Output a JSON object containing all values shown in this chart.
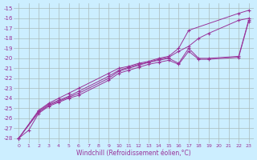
{
  "xlabel": "Windchill (Refroidissement éolien,°C)",
  "background_color": "#cceeff",
  "grid_color": "#aabbbb",
  "line_color": "#993399",
  "xlim": [
    -0.5,
    23.5
  ],
  "ylim": [
    -28.5,
    -14.5
  ],
  "yticks": [
    -28,
    -27,
    -26,
    -25,
    -24,
    -23,
    -22,
    -21,
    -20,
    -19,
    -18,
    -17,
    -16,
    -15
  ],
  "xticks": [
    0,
    1,
    2,
    3,
    4,
    5,
    6,
    7,
    8,
    9,
    10,
    11,
    12,
    13,
    14,
    15,
    16,
    17,
    18,
    19,
    20,
    21,
    22,
    23
  ],
  "lines": [
    {
      "x": [
        0,
        2,
        3,
        4,
        5,
        6,
        9,
        10,
        11,
        12,
        13,
        14,
        15,
        16,
        17,
        22,
        23
      ],
      "y": [
        -28,
        -25.2,
        -24.5,
        -24.0,
        -23.5,
        -23.0,
        -21.5,
        -21.0,
        -20.8,
        -20.5,
        -20.3,
        -20.0,
        -19.8,
        -19.0,
        -17.2,
        -15.5,
        -15.2
      ]
    },
    {
      "x": [
        0,
        2,
        3,
        4,
        5,
        6,
        9,
        10,
        11,
        12,
        13,
        14,
        15,
        16,
        17,
        18,
        19,
        22,
        23
      ],
      "y": [
        -28,
        -25.3,
        -24.6,
        -24.2,
        -23.8,
        -23.3,
        -21.8,
        -21.2,
        -20.9,
        -20.6,
        -20.4,
        -20.1,
        -19.9,
        -19.3,
        -18.8,
        -18.0,
        -17.5,
        -16.2,
        -16.0
      ]
    },
    {
      "x": [
        0,
        2,
        3,
        4,
        5,
        6,
        9,
        10,
        11,
        12,
        13,
        14,
        15,
        16,
        17,
        18,
        19,
        22,
        23
      ],
      "y": [
        -28,
        -25.4,
        -24.7,
        -24.3,
        -23.9,
        -23.5,
        -22.0,
        -21.3,
        -21.0,
        -20.7,
        -20.4,
        -20.2,
        -20.0,
        -20.5,
        -19.0,
        -20.0,
        -20.0,
        -19.8,
        -16.2
      ]
    },
    {
      "x": [
        0,
        1,
        2,
        3,
        4,
        5,
        6,
        9,
        10,
        11,
        12,
        13,
        14,
        15,
        16,
        17,
        18,
        19,
        22,
        23
      ],
      "y": [
        -28,
        -27.2,
        -25.5,
        -24.8,
        -24.4,
        -24.0,
        -23.7,
        -22.2,
        -21.5,
        -21.2,
        -20.9,
        -20.6,
        -20.4,
        -20.2,
        -20.6,
        -19.3,
        -20.1,
        -20.1,
        -19.9,
        -16.3
      ]
    }
  ]
}
